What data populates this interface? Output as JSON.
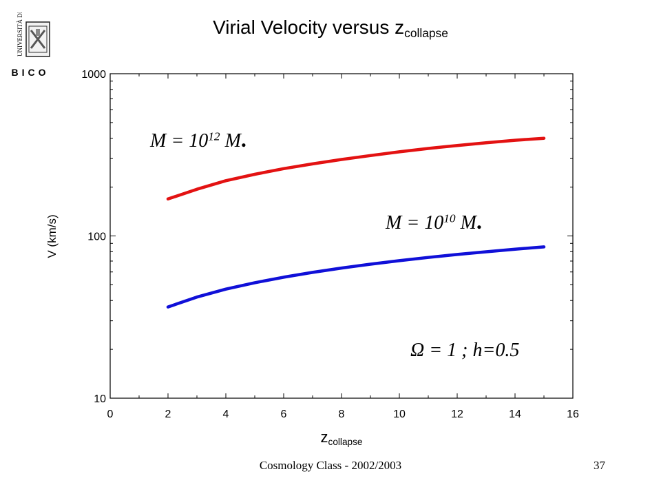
{
  "slide": {
    "title_main": "Virial Velocity versus z",
    "title_sub": "collapse",
    "footer": "Cosmology Class - 2002/2003",
    "page_number": "37"
  },
  "logo": {
    "text_top": "UNIVERSITÀ DEGLI",
    "text_bottom": "BICO"
  },
  "chart_data": {
    "type": "line",
    "title": "Virial Velocity versus z collapse",
    "xlabel_main": "z",
    "xlabel_sub": "collapse",
    "ylabel": "V (km/s)",
    "xlim": [
      0,
      16
    ],
    "ylim": [
      10,
      1000
    ],
    "yscale": "log",
    "x_ticks": [
      0,
      2,
      4,
      6,
      8,
      10,
      12,
      14,
      16
    ],
    "y_ticks": [
      10,
      100,
      1000
    ],
    "grid": false,
    "x": [
      2,
      3,
      4,
      5,
      6,
      7,
      8,
      9,
      10,
      11,
      12,
      13,
      14,
      15
    ],
    "series": [
      {
        "name": "M = 10^12 M☉",
        "color": "#e31212",
        "values": [
          169,
          194,
          219,
          240,
          260,
          278,
          296,
          313,
          330,
          346,
          361,
          375,
          389,
          400
        ]
      },
      {
        "name": "M = 10^10 M☉",
        "color": "#1010d8",
        "values": [
          36.5,
          42,
          47,
          51.5,
          55.7,
          59.6,
          63.4,
          67,
          70.4,
          73.7,
          76.9,
          79.9,
          82.9,
          85.6
        ]
      }
    ],
    "annotations": [
      {
        "base": "M = 10",
        "exp": "12",
        "unit": "M",
        "sun": "."
      },
      {
        "base": "M = 10",
        "exp": "10",
        "unit": "M",
        "sun": "."
      },
      {
        "text": "Ω = 1 ; h=0.5"
      }
    ]
  }
}
